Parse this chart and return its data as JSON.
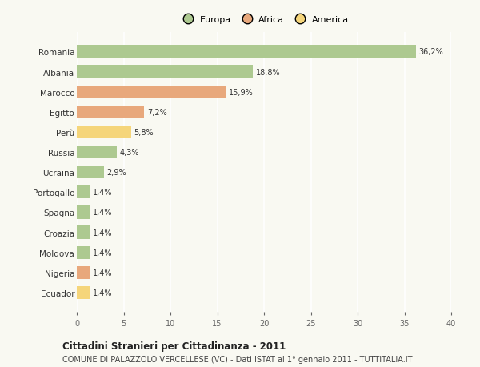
{
  "categories": [
    "Romania",
    "Albania",
    "Marocco",
    "Egitto",
    "Perù",
    "Russia",
    "Ucraina",
    "Portogallo",
    "Spagna",
    "Croazia",
    "Moldova",
    "Nigeria",
    "Ecuador"
  ],
  "values": [
    36.2,
    18.8,
    15.9,
    7.2,
    5.8,
    4.3,
    2.9,
    1.4,
    1.4,
    1.4,
    1.4,
    1.4,
    1.4
  ],
  "colors": [
    "#adc990",
    "#adc990",
    "#e8a87c",
    "#e8a87c",
    "#f5d57a",
    "#adc990",
    "#adc990",
    "#adc990",
    "#adc990",
    "#adc990",
    "#adc990",
    "#e8a87c",
    "#f5d57a"
  ],
  "legend": [
    {
      "label": "Europa",
      "color": "#adc990"
    },
    {
      "label": "Africa",
      "color": "#e8a87c"
    },
    {
      "label": "America",
      "color": "#f5d57a"
    }
  ],
  "xlim": [
    0,
    40
  ],
  "xticks": [
    0,
    5,
    10,
    15,
    20,
    25,
    30,
    35,
    40
  ],
  "title": "Cittadini Stranieri per Cittadinanza - 2011",
  "subtitle": "COMUNE DI PALAZZOLO VERCELLESE (VC) - Dati ISTAT al 1° gennaio 2011 - TUTTITALIA.IT",
  "background_color": "#f9f9f2",
  "grid_color": "#ffffff",
  "bar_height": 0.65,
  "label_fontsize": 7.0,
  "ytick_fontsize": 7.5,
  "xtick_fontsize": 7.0,
  "legend_fontsize": 8.0,
  "title_fontsize": 8.5,
  "subtitle_fontsize": 7.0
}
